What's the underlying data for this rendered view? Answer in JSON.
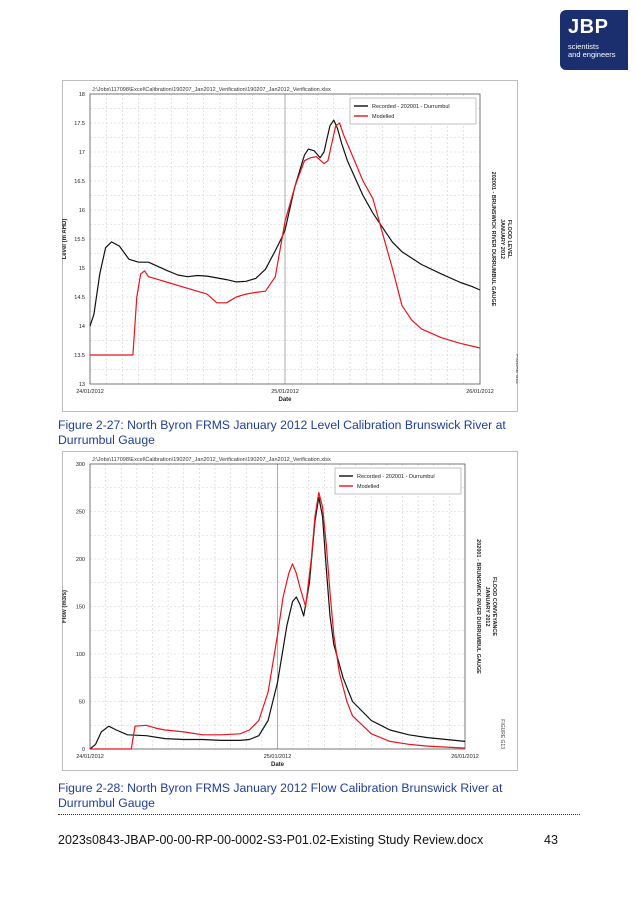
{
  "logo": {
    "text": "JBP",
    "subtitle_line1": "scientists",
    "subtitle_line2": "and engineers",
    "color": "#1b2f6e"
  },
  "colors": {
    "recorded": "#111111",
    "modelled": "#e8141b",
    "caption": "#1f3d99",
    "grid": "#cfcfcf"
  },
  "charts": [
    {
      "filepath": "J:\\Jobs\\117098\\Excel\\Calibration\\190207_Jan2012_Verification\\190207_Jan2012_Verification.xlsx",
      "side_label_1": "FIGURE G12",
      "side_label_2": "JANUARY 2012",
      "side_label_3": "FLOOD LEVEL",
      "side_title_1": "202001 - BRUNSWICK RIVER DURRUMBUL GAUGE",
      "caption": "Figure 2-27: North Byron FRMS January 2012 Level Calibration Brunswick River at Durrumbul Gauge"
    },
    {
      "filepath": "J:\\Jobs\\117098\\Excel\\Calibration\\190207_Jan2012_Verification\\190207_Jan2012_Verification.xlsx",
      "side_label_1": "FIGURE G13",
      "side_label_2": "JANUARY 2012",
      "side_label_3": "FLOOD CONVEYANCE",
      "side_title_1": "202001 - BRUNSWICK RIVER DURRUMBUL GAUGE",
      "caption": "Figure 2-28: North Byron FRMS January 2012 Flow Calibration Brunswick River at Durrumbul Gauge"
    }
  ],
  "chart_data": [
    {
      "type": "line",
      "title": "",
      "xlabel": "Date",
      "ylabel": "Level (m AHD)",
      "x_ticks": [
        "24/01/2012",
        "25/01/2012",
        "26/01/2012"
      ],
      "xlim": [
        0,
        2
      ],
      "ylim": [
        13,
        18
      ],
      "yticks": [
        "13",
        "13.5",
        "14",
        "14.5",
        "15",
        "15.5",
        "16",
        "16.5",
        "17",
        "17.5",
        "18"
      ],
      "grid": true,
      "legend": "top-right",
      "series": [
        {
          "name": "Recorded - 202001 - Durrumbul",
          "x": [
            0,
            0.02,
            0.05,
            0.08,
            0.11,
            0.15,
            0.2,
            0.25,
            0.3,
            0.4,
            0.45,
            0.5,
            0.55,
            0.6,
            0.7,
            0.75,
            0.8,
            0.85,
            0.9,
            0.95,
            0.98,
            1.0,
            1.05,
            1.1,
            1.12,
            1.15,
            1.18,
            1.2,
            1.23,
            1.25,
            1.27,
            1.29,
            1.32,
            1.4,
            1.45,
            1.5,
            1.55,
            1.6,
            1.7,
            1.8,
            1.9,
            1.96,
            2.0
          ],
          "y": [
            14.0,
            14.2,
            14.9,
            15.35,
            15.45,
            15.38,
            15.15,
            15.1,
            15.1,
            14.95,
            14.88,
            14.85,
            14.87,
            14.86,
            14.8,
            14.76,
            14.77,
            14.82,
            14.98,
            15.3,
            15.5,
            15.65,
            16.4,
            16.95,
            17.05,
            17.02,
            16.9,
            17.0,
            17.45,
            17.55,
            17.4,
            17.15,
            16.85,
            16.25,
            15.95,
            15.7,
            15.45,
            15.28,
            15.06,
            14.9,
            14.75,
            14.68,
            14.62
          ]
        },
        {
          "name": "Modelled",
          "x": [
            0,
            0.1,
            0.2,
            0.22,
            0.24,
            0.26,
            0.28,
            0.3,
            0.35,
            0.4,
            0.45,
            0.5,
            0.6,
            0.65,
            0.7,
            0.75,
            0.8,
            0.85,
            0.9,
            0.95,
            1.0,
            1.05,
            1.1,
            1.13,
            1.16,
            1.2,
            1.22,
            1.24,
            1.26,
            1.28,
            1.3,
            1.35,
            1.4,
            1.45,
            1.5,
            1.55,
            1.6,
            1.65,
            1.7,
            1.8,
            1.9,
            2.0
          ],
          "y": [
            13.5,
            13.5,
            13.5,
            13.5,
            14.5,
            14.9,
            14.95,
            14.85,
            14.8,
            14.75,
            14.7,
            14.65,
            14.55,
            14.4,
            14.4,
            14.5,
            14.55,
            14.58,
            14.6,
            14.85,
            15.8,
            16.4,
            16.85,
            16.9,
            16.92,
            16.8,
            16.85,
            17.15,
            17.45,
            17.5,
            17.3,
            16.9,
            16.5,
            16.2,
            15.6,
            15.0,
            14.35,
            14.1,
            13.95,
            13.8,
            13.7,
            13.62
          ]
        }
      ]
    },
    {
      "type": "line",
      "title": "",
      "xlabel": "Date",
      "ylabel": "Flow (m3/s)",
      "x_ticks": [
        "24/01/2012",
        "25/01/2012",
        "26/01/2012"
      ],
      "xlim": [
        0,
        2
      ],
      "ylim": [
        0,
        300
      ],
      "yticks": [
        "0",
        "50",
        "100",
        "150",
        "200",
        "250",
        "300"
      ],
      "grid": true,
      "legend": "top-right",
      "series": [
        {
          "name": "Recorded - 202001 - Durrumbul",
          "x": [
            0,
            0.03,
            0.06,
            0.1,
            0.14,
            0.2,
            0.3,
            0.4,
            0.5,
            0.6,
            0.7,
            0.8,
            0.85,
            0.9,
            0.95,
            1.0,
            1.05,
            1.08,
            1.1,
            1.12,
            1.14,
            1.17,
            1.2,
            1.22,
            1.24,
            1.26,
            1.28,
            1.3,
            1.35,
            1.4,
            1.5,
            1.6,
            1.7,
            1.8,
            1.9,
            2.0
          ],
          "y": [
            0,
            5,
            18,
            24,
            20,
            15,
            14,
            11,
            10,
            10,
            9,
            9,
            10,
            14,
            30,
            70,
            130,
            155,
            160,
            152,
            140,
            175,
            240,
            265,
            245,
            190,
            140,
            110,
            75,
            50,
            30,
            20,
            15,
            12,
            10,
            8
          ]
        },
        {
          "name": "Modelled",
          "x": [
            0,
            0.15,
            0.2,
            0.22,
            0.24,
            0.3,
            0.35,
            0.4,
            0.5,
            0.6,
            0.7,
            0.8,
            0.85,
            0.9,
            0.95,
            1.0,
            1.03,
            1.06,
            1.08,
            1.1,
            1.12,
            1.15,
            1.18,
            1.2,
            1.22,
            1.24,
            1.26,
            1.28,
            1.3,
            1.33,
            1.37,
            1.4,
            1.5,
            1.6,
            1.7,
            1.8,
            1.9,
            2.0
          ],
          "y": [
            0,
            0,
            0,
            0,
            24,
            25,
            22,
            20,
            18,
            15,
            15,
            16,
            20,
            30,
            60,
            120,
            160,
            185,
            195,
            185,
            170,
            150,
            200,
            245,
            270,
            255,
            215,
            165,
            120,
            80,
            50,
            35,
            16,
            8,
            5,
            3,
            2,
            1
          ]
        }
      ]
    }
  ],
  "footer": {
    "document": "2023s0843-JBAP-00-00-RP-00-0002-S3-P01.02-Existing Study Review.docx",
    "page": "43"
  }
}
